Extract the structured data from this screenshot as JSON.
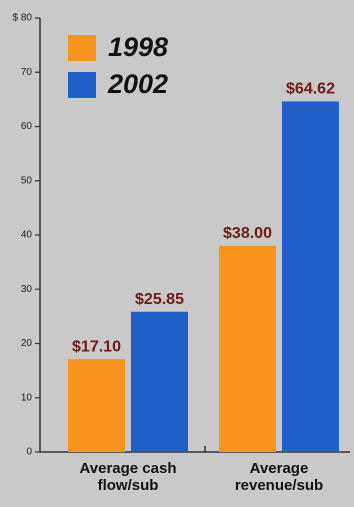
{
  "chart_data": {
    "type": "bar",
    "categories": [
      "Average cash flow/sub",
      "Average revenue/sub"
    ],
    "series": [
      {
        "name": "1998",
        "color": "#f7941d",
        "values": [
          17.1,
          38.0
        ],
        "value_labels": [
          "$17.10",
          "$38.00"
        ]
      },
      {
        "name": "2002",
        "color": "#1f5fc8",
        "values": [
          25.85,
          64.62
        ],
        "value_labels": [
          "$25.85",
          "$64.62"
        ]
      }
    ],
    "ylim": [
      0,
      80
    ],
    "yticks": [
      0,
      10,
      20,
      30,
      40,
      50,
      60,
      70,
      {
        "value": 80,
        "label": "$ 80"
      }
    ],
    "legend": "upper left"
  }
}
